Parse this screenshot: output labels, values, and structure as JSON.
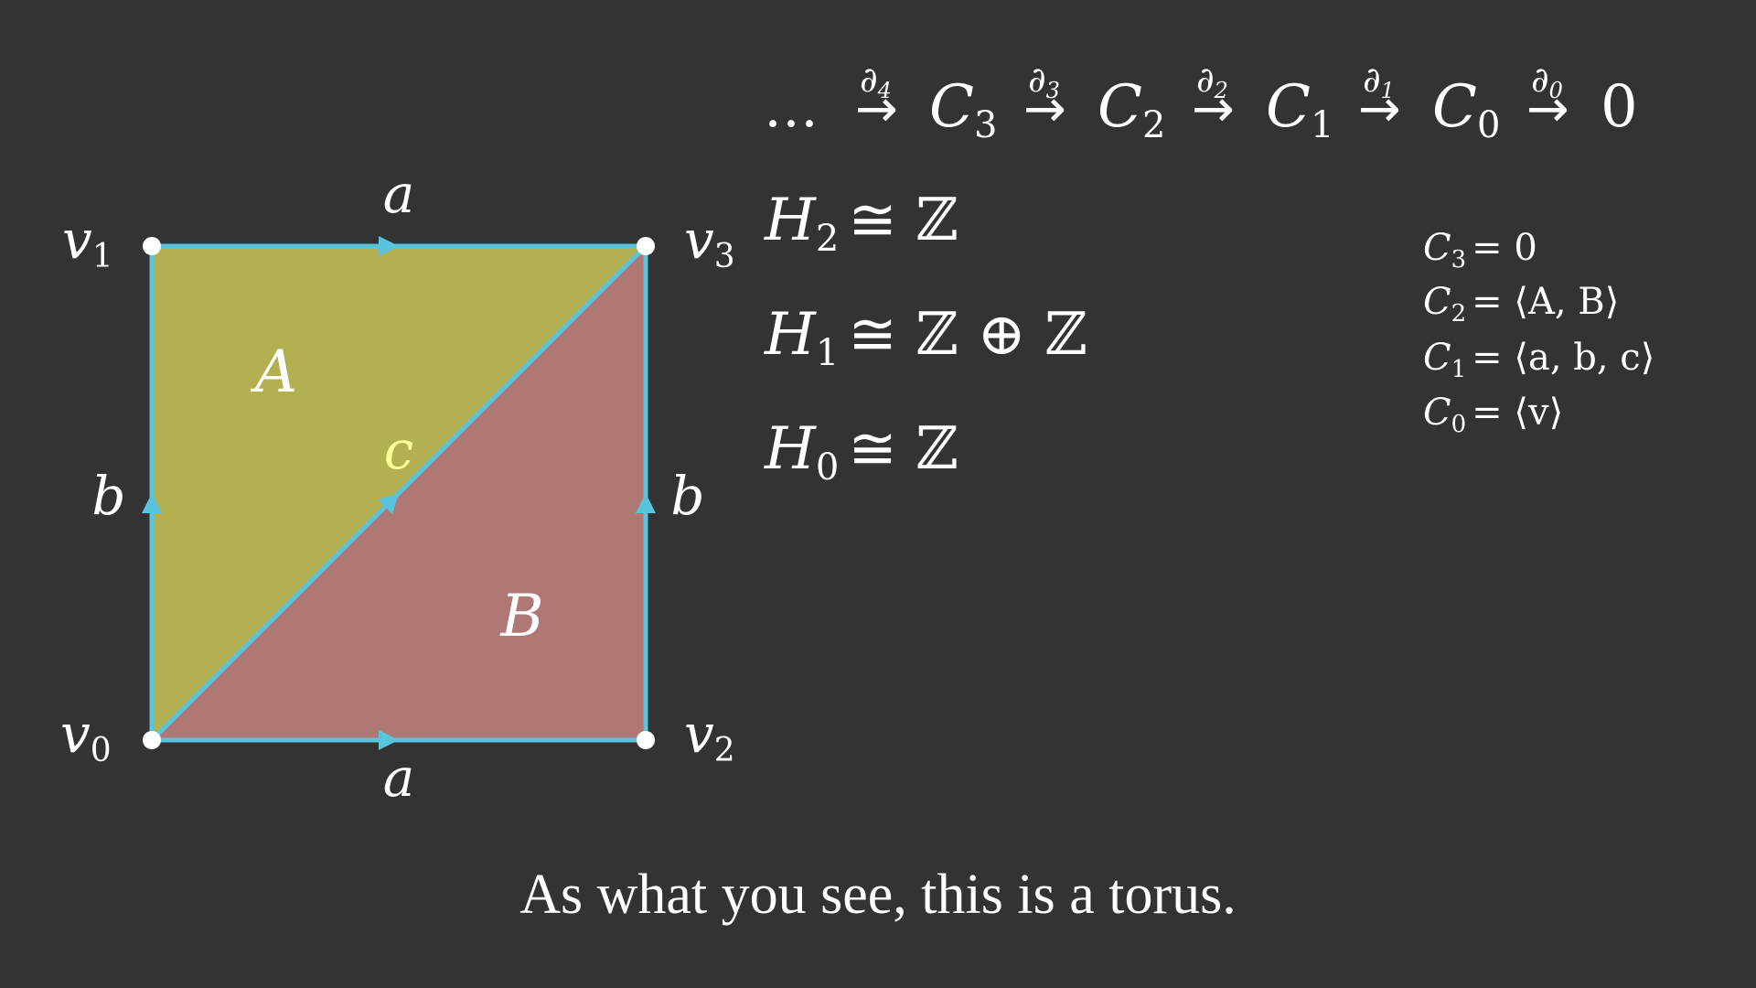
{
  "colors": {
    "background": "#333333",
    "face_A": "#b3b052",
    "face_B": "#b07874",
    "edge": "#58c4dd",
    "vertex": "#ffffff",
    "diagonal_label": "#ffff99"
  },
  "diagram": {
    "faces": {
      "A": "A",
      "B": "B"
    },
    "edges": {
      "top": "a",
      "bottom": "a",
      "left": "b",
      "right": "b",
      "diagonal": "c"
    },
    "vertices": {
      "v0": {
        "base": "v",
        "sub": "0"
      },
      "v1": {
        "base": "v",
        "sub": "1"
      },
      "v2": {
        "base": "v",
        "sub": "2"
      },
      "v3": {
        "base": "v",
        "sub": "3"
      }
    }
  },
  "chain_complex": {
    "leading": "…",
    "terms": [
      {
        "map": "∂",
        "map_sub": "4",
        "base": "C",
        "sub": "3"
      },
      {
        "map": "∂",
        "map_sub": "3",
        "base": "C",
        "sub": "2"
      },
      {
        "map": "∂",
        "map_sub": "2",
        "base": "C",
        "sub": "1"
      },
      {
        "map": "∂",
        "map_sub": "1",
        "base": "C",
        "sub": "0"
      },
      {
        "map": "∂",
        "map_sub": "0",
        "base": "0",
        "sub": ""
      }
    ]
  },
  "homology": [
    {
      "base": "H",
      "sub": "2",
      "rhs": "≅ ℤ"
    },
    {
      "base": "H",
      "sub": "1",
      "rhs": "≅ ℤ ⊕ ℤ"
    },
    {
      "base": "H",
      "sub": "0",
      "rhs": "≅ ℤ"
    }
  ],
  "chain_groups": [
    {
      "base": "C",
      "sub": "3",
      "rhs": "= 0"
    },
    {
      "base": "C",
      "sub": "2",
      "rhs": "= ⟨A, B⟩"
    },
    {
      "base": "C",
      "sub": "1",
      "rhs": "= ⟨a, b, c⟩"
    },
    {
      "base": "C",
      "sub": "0",
      "rhs": "= ⟨v⟩"
    }
  ],
  "caption": "As what you see, this is a torus."
}
